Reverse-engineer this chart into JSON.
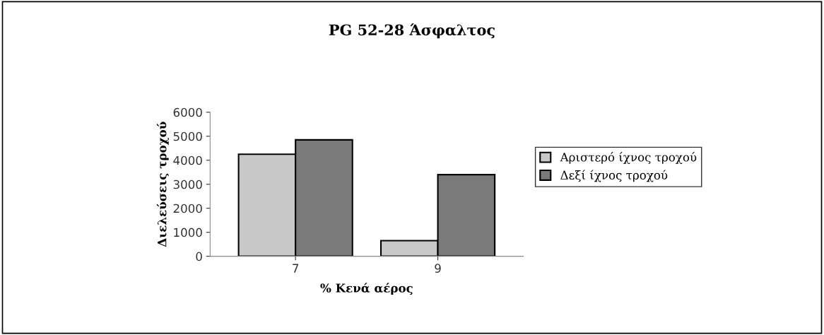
{
  "chart_data": {
    "type": "bar",
    "title": "PG 52-28 Άσφαλτος",
    "xlabel": "% Κενά αέρος",
    "ylabel": "Διελεύσεις τροχού",
    "categories": [
      "7",
      "9"
    ],
    "series": [
      {
        "name": "Αριστερό ίχνος τροχού",
        "color": "#c8c8c8",
        "values": [
          4250,
          650
        ]
      },
      {
        "name": "Δεξί ίχνος τροχού",
        "color": "#7a7a7a",
        "values": [
          4850,
          3400
        ]
      }
    ],
    "ylim": [
      0,
      6000
    ],
    "yticks": [
      0,
      1000,
      2000,
      3000,
      4000,
      5000,
      6000
    ],
    "grid": false,
    "legend": "right"
  }
}
